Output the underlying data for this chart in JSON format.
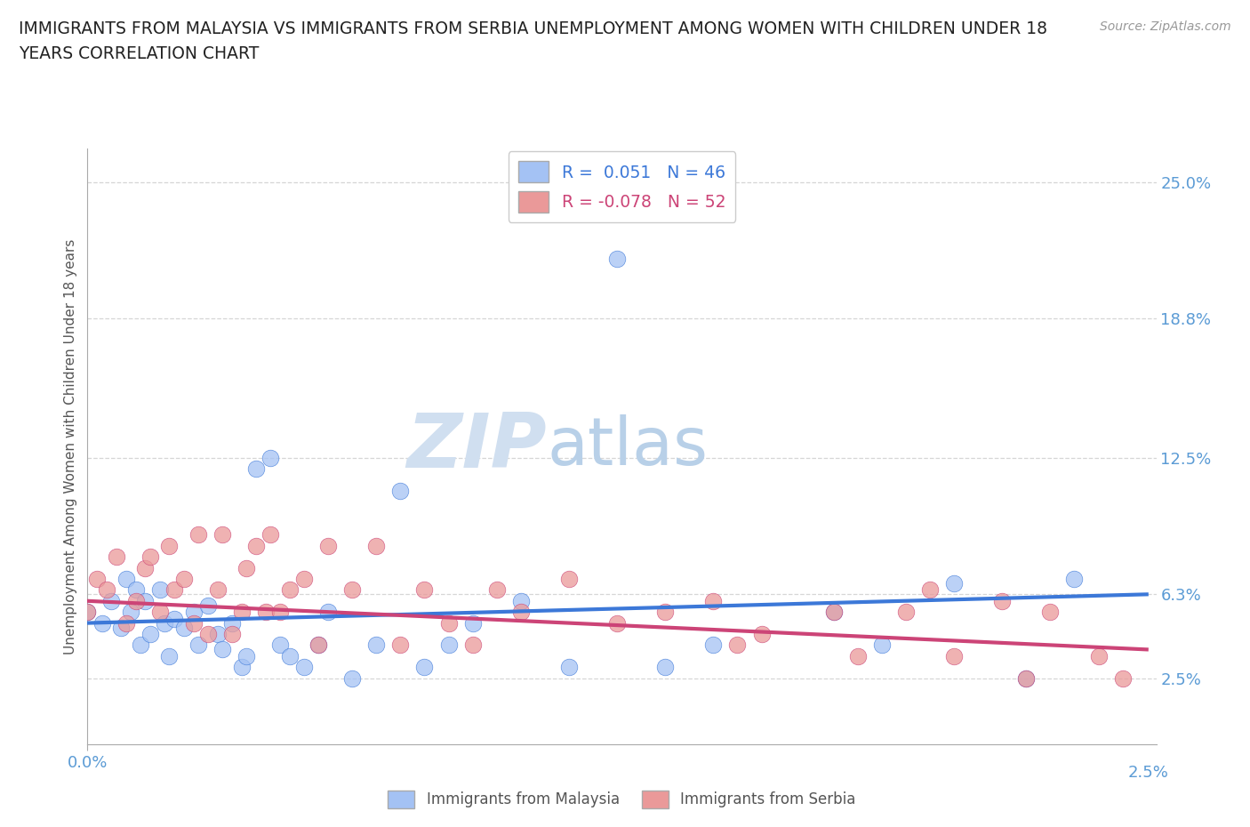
{
  "title_line1": "IMMIGRANTS FROM MALAYSIA VS IMMIGRANTS FROM SERBIA UNEMPLOYMENT AMONG WOMEN WITH CHILDREN UNDER 18",
  "title_line2": "YEARS CORRELATION CHART",
  "source_text": "Source: ZipAtlas.com",
  "ylabel": "Unemployment Among Women with Children Under 18 years",
  "xlim": [
    0.0,
    0.222
  ],
  "ylim": [
    -0.005,
    0.265
  ],
  "yticks": [
    0.025,
    0.063,
    0.125,
    0.188,
    0.25
  ],
  "ytick_labels": [
    "2.5%",
    "6.3%",
    "12.5%",
    "18.8%",
    "25.0%"
  ],
  "xtick_val": 0.0,
  "xtick_label": "0.0%",
  "xmax_label": "2.5%",
  "malaysia_color": "#a4c2f4",
  "serbia_color": "#ea9999",
  "malaysia_line_color": "#3c78d8",
  "serbia_line_color": "#cc4477",
  "R_malaysia": 0.051,
  "N_malaysia": 46,
  "R_serbia": -0.078,
  "N_serbia": 52,
  "malaysia_scatter_x": [
    0.0,
    0.003,
    0.005,
    0.007,
    0.008,
    0.009,
    0.01,
    0.011,
    0.012,
    0.013,
    0.015,
    0.016,
    0.017,
    0.018,
    0.02,
    0.022,
    0.023,
    0.025,
    0.027,
    0.028,
    0.03,
    0.032,
    0.033,
    0.035,
    0.038,
    0.04,
    0.042,
    0.045,
    0.048,
    0.05,
    0.055,
    0.06,
    0.065,
    0.07,
    0.075,
    0.08,
    0.09,
    0.1,
    0.11,
    0.12,
    0.13,
    0.155,
    0.165,
    0.18,
    0.195,
    0.205
  ],
  "malaysia_scatter_y": [
    0.055,
    0.05,
    0.06,
    0.048,
    0.07,
    0.055,
    0.065,
    0.04,
    0.06,
    0.045,
    0.065,
    0.05,
    0.035,
    0.052,
    0.048,
    0.055,
    0.04,
    0.058,
    0.045,
    0.038,
    0.05,
    0.03,
    0.035,
    0.12,
    0.125,
    0.04,
    0.035,
    0.03,
    0.04,
    0.055,
    0.025,
    0.04,
    0.11,
    0.03,
    0.04,
    0.05,
    0.06,
    0.03,
    0.215,
    0.03,
    0.04,
    0.055,
    0.04,
    0.068,
    0.025,
    0.07
  ],
  "serbia_scatter_x": [
    0.0,
    0.002,
    0.004,
    0.006,
    0.008,
    0.01,
    0.012,
    0.013,
    0.015,
    0.017,
    0.018,
    0.02,
    0.022,
    0.023,
    0.025,
    0.027,
    0.028,
    0.03,
    0.032,
    0.033,
    0.035,
    0.037,
    0.038,
    0.04,
    0.042,
    0.045,
    0.048,
    0.05,
    0.055,
    0.06,
    0.065,
    0.07,
    0.075,
    0.08,
    0.085,
    0.09,
    0.1,
    0.11,
    0.12,
    0.13,
    0.135,
    0.14,
    0.155,
    0.16,
    0.17,
    0.175,
    0.18,
    0.19,
    0.195,
    0.2,
    0.21,
    0.215
  ],
  "serbia_scatter_y": [
    0.055,
    0.07,
    0.065,
    0.08,
    0.05,
    0.06,
    0.075,
    0.08,
    0.055,
    0.085,
    0.065,
    0.07,
    0.05,
    0.09,
    0.045,
    0.065,
    0.09,
    0.045,
    0.055,
    0.075,
    0.085,
    0.055,
    0.09,
    0.055,
    0.065,
    0.07,
    0.04,
    0.085,
    0.065,
    0.085,
    0.04,
    0.065,
    0.05,
    0.04,
    0.065,
    0.055,
    0.07,
    0.05,
    0.055,
    0.06,
    0.04,
    0.045,
    0.055,
    0.035,
    0.055,
    0.065,
    0.035,
    0.06,
    0.025,
    0.055,
    0.035,
    0.025
  ],
  "background_color": "#ffffff",
  "grid_color": "#cccccc",
  "title_color": "#222222",
  "axis_label_color": "#555555",
  "tick_label_color": "#5b9bd5",
  "watermark_zip_color": "#d0dff0",
  "watermark_atlas_color": "#b8d0e8"
}
